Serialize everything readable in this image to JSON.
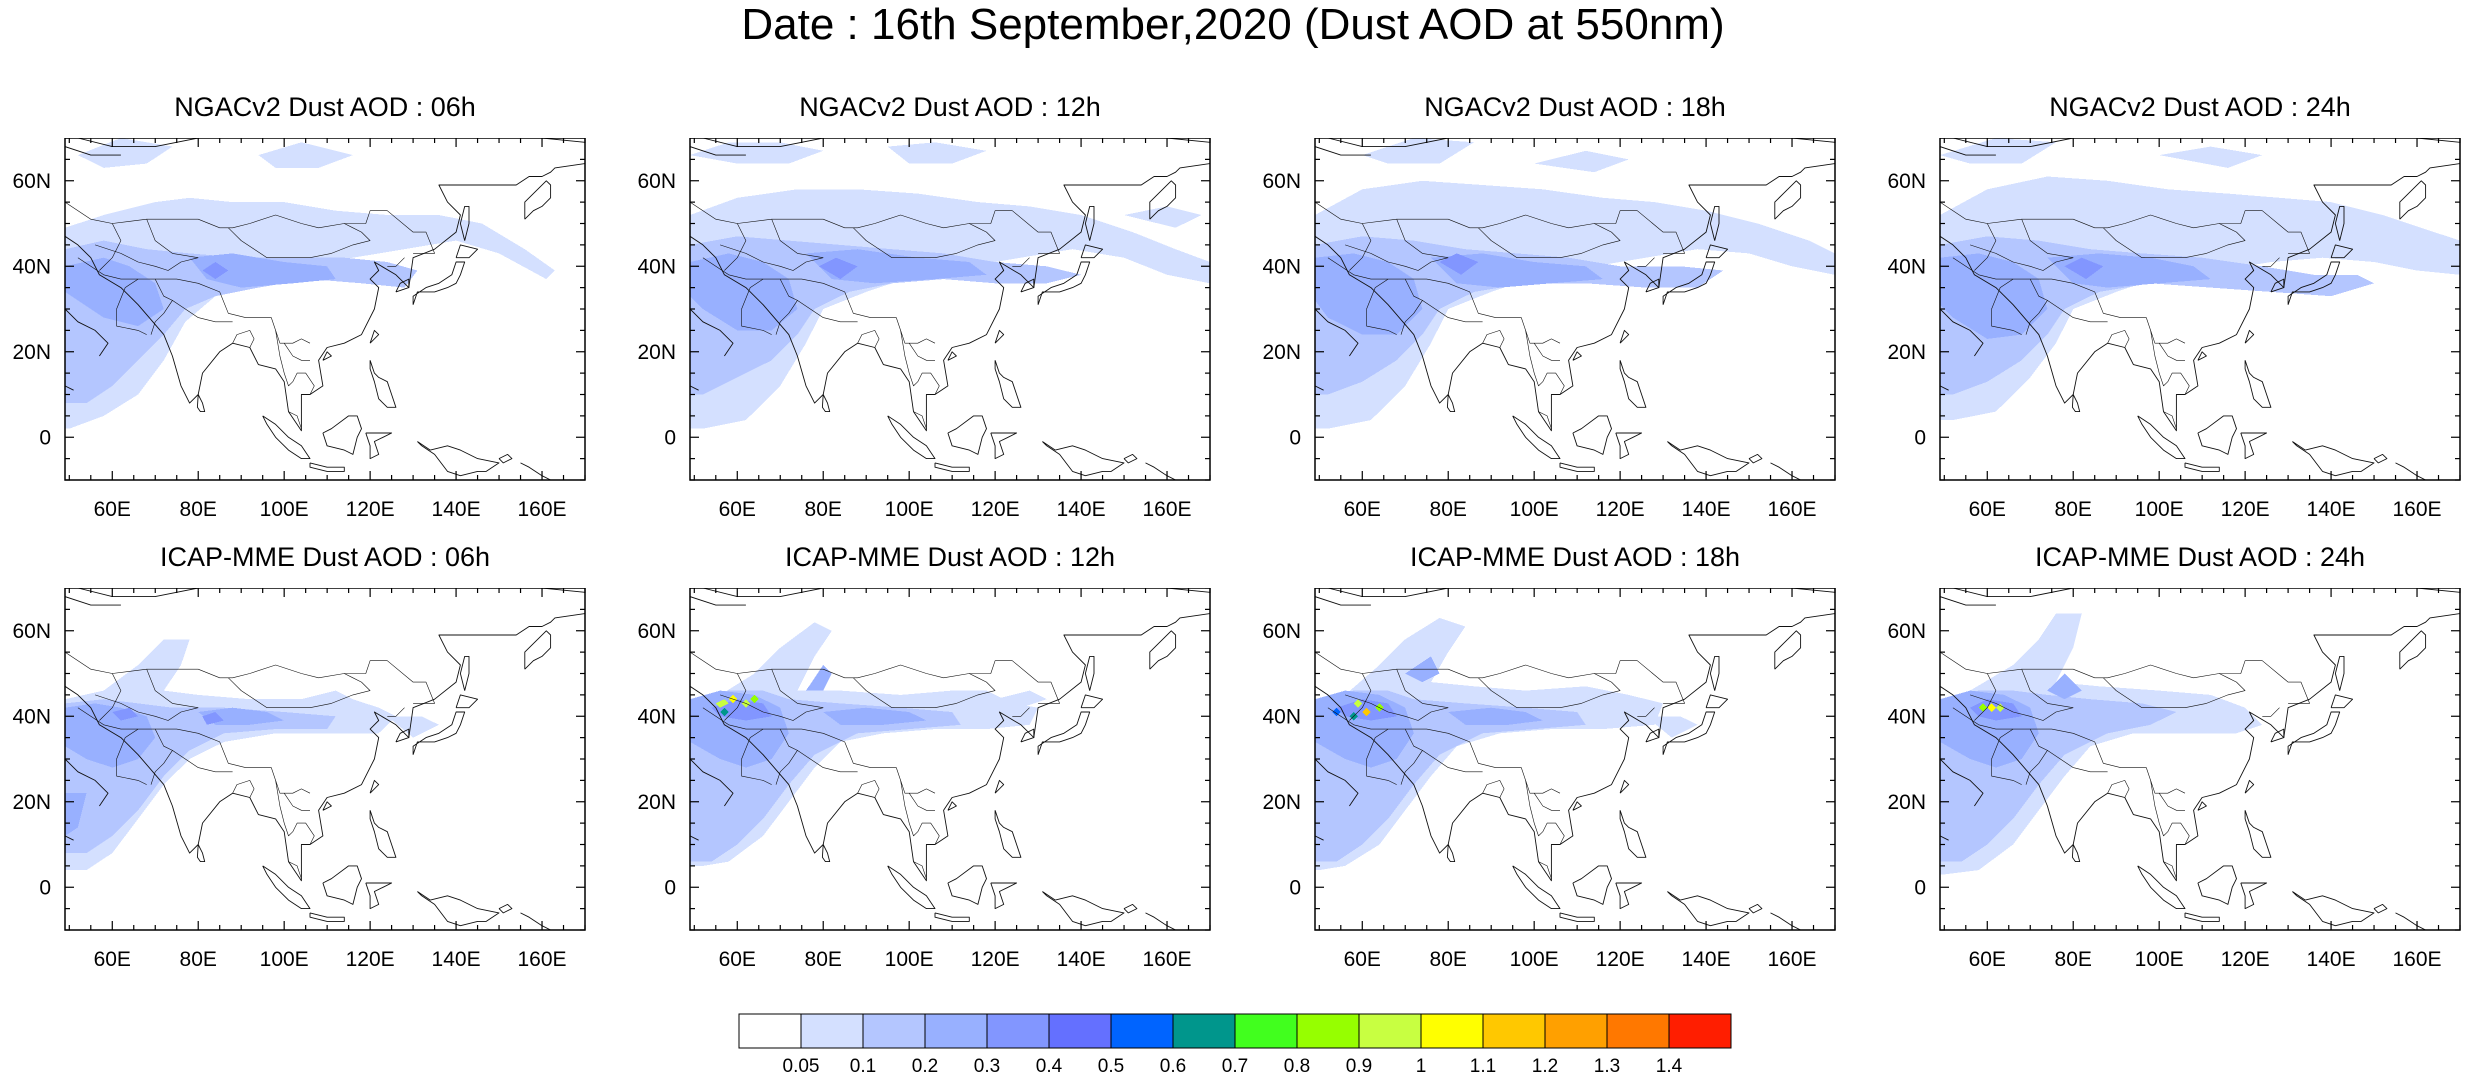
{
  "figure": {
    "title": "Date : 16th September,2020 (Dust AOD at 550nm)"
  },
  "axes": {
    "lon_range": [
      49,
      170
    ],
    "lat_range": [
      -10,
      70
    ],
    "lon_ticks": [
      60,
      80,
      100,
      120,
      140,
      160
    ],
    "lon_tick_labels": [
      "60E",
      "80E",
      "100E",
      "120E",
      "140E",
      "160E"
    ],
    "lat_ticks": [
      60,
      40,
      20,
      0
    ],
    "lat_tick_labels": [
      "60N",
      "40N",
      "20N",
      "0"
    ]
  },
  "panels": [
    {
      "id": "ngac-06",
      "title": "NGACv2 Dust AOD : 06h"
    },
    {
      "id": "ngac-12",
      "title": "NGACv2 Dust AOD : 12h"
    },
    {
      "id": "ngac-18",
      "title": "NGACv2 Dust AOD : 18h"
    },
    {
      "id": "ngac-24",
      "title": "NGACv2 Dust AOD : 24h"
    },
    {
      "id": "icap-06",
      "title": "ICAP-MME Dust AOD : 06h"
    },
    {
      "id": "icap-12",
      "title": "ICAP-MME Dust AOD : 12h"
    },
    {
      "id": "icap-18",
      "title": "ICAP-MME Dust AOD : 18h"
    },
    {
      "id": "icap-24",
      "title": "ICAP-MME Dust AOD : 24h"
    }
  ],
  "colorbar": {
    "colors": [
      "#ffffff",
      "#d4e0ff",
      "#b4c6ff",
      "#98b0ff",
      "#8296ff",
      "#6470ff",
      "#0064ff",
      "#00968c",
      "#41ff1e",
      "#96ff00",
      "#c8ff41",
      "#ffff00",
      "#ffc800",
      "#ffa000",
      "#ff7800",
      "#ff1e00"
    ],
    "boundary_labels": [
      "0.05",
      "0.1",
      "0.2",
      "0.3",
      "0.4",
      "0.5",
      "0.6",
      "0.7",
      "0.8",
      "0.9",
      "1",
      "1.1",
      "1.2",
      "1.3",
      "1.4"
    ]
  }
}
